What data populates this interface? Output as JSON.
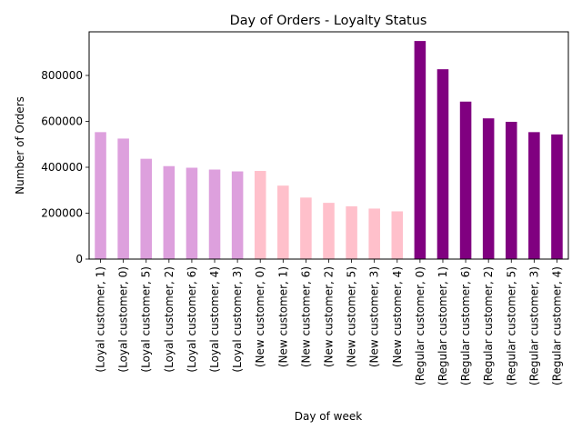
{
  "chart_data": {
    "type": "bar",
    "title": "Day of Orders - Loyalty Status",
    "xlabel": "Day of week",
    "ylabel": "Number of Orders",
    "ylim": [
      0,
      990000
    ],
    "yticks": [
      0,
      200000,
      400000,
      600000,
      800000
    ],
    "ytick_labels": [
      "0",
      "200000",
      "400000",
      "600000",
      "800000"
    ],
    "grid": false,
    "legend": "none",
    "categories": [
      "(Loyal customer, 1)",
      "(Loyal customer, 0)",
      "(Loyal customer, 5)",
      "(Loyal customer, 2)",
      "(Loyal customer, 6)",
      "(Loyal customer, 4)",
      "(Loyal customer, 3)",
      "(New customer, 0)",
      "(New customer, 1)",
      "(New customer, 6)",
      "(New customer, 2)",
      "(New customer, 5)",
      "(New customer, 3)",
      "(New customer, 4)",
      "(Regular customer, 0)",
      "(Regular customer, 1)",
      "(Regular customer, 6)",
      "(Regular customer, 2)",
      "(Regular customer, 5)",
      "(Regular customer, 3)",
      "(Regular customer, 4)"
    ],
    "values": [
      553000,
      525000,
      437000,
      405000,
      398000,
      390000,
      382000,
      384000,
      320000,
      268000,
      245000,
      230000,
      220000,
      208000,
      950000,
      827000,
      686000,
      613000,
      598000,
      553000,
      543000
    ],
    "bar_colors": [
      "#dda0dd",
      "#dda0dd",
      "#dda0dd",
      "#dda0dd",
      "#dda0dd",
      "#dda0dd",
      "#dda0dd",
      "#ffc0cb",
      "#ffc0cb",
      "#ffc0cb",
      "#ffc0cb",
      "#ffc0cb",
      "#ffc0cb",
      "#ffc0cb",
      "#800080",
      "#800080",
      "#800080",
      "#800080",
      "#800080",
      "#800080",
      "#800080"
    ]
  }
}
